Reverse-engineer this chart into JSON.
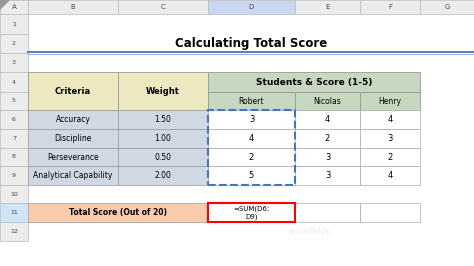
{
  "title": "Calculating Total Score",
  "criteria": [
    "Accuracy",
    "Discipline",
    "Perseverance",
    "Analytical Capability"
  ],
  "weights": [
    "1.50",
    "1.00",
    "0.50",
    "2.00"
  ],
  "robert": [
    "3",
    "4",
    "2",
    "5"
  ],
  "nicolas": [
    "4",
    "2",
    "3",
    "3"
  ],
  "henry": [
    "4",
    "3",
    "2",
    "4"
  ],
  "total_label": "Total Score (Out of 20)",
  "formula_line1": "=SUM(D6:",
  "formula_line2": "D9)",
  "bg_color": "#FFFFFF",
  "header_yellow": "#EDE8C0",
  "header_green": "#C6D9C0",
  "data_blue": "#D0D8E4",
  "total_orange": "#F8CBAD",
  "formula_box_color": "#FF0000",
  "blue_border": "#4472C4",
  "title_line_color": "#4472C4",
  "excel_col_bg": "#ECECEC",
  "excel_col_selected": "#C8D8F0",
  "excel_row_selected": "#D0E4F8",
  "col_labels": [
    "A",
    "B",
    "C",
    "D",
    "E",
    "F",
    "G"
  ]
}
